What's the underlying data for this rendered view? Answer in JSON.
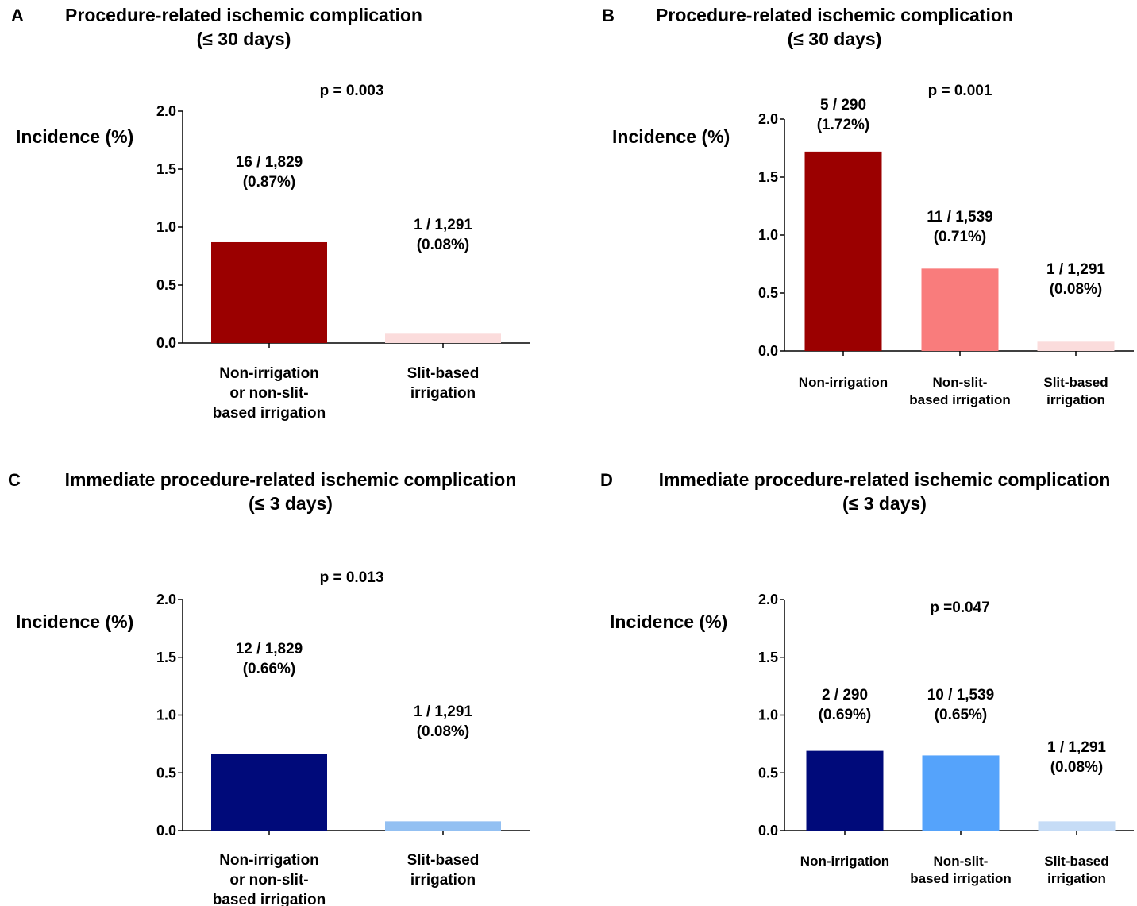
{
  "chart_data": [
    {
      "panel": "A",
      "type": "bar",
      "title_lines": [
        "Procedure-related ischemic complication",
        "(≤ 30 days)"
      ],
      "ylabel": "Incidence (%)",
      "p_value_label": "p = 0.003",
      "ylim": [
        0,
        2.0
      ],
      "yticks": [
        "0.0",
        "0.5",
        "1.0",
        "1.5",
        "2.0"
      ],
      "categories": [
        [
          "Non-irrigation",
          "or non-slit-",
          "based irrigation"
        ],
        [
          "Slit-based",
          "irrigation"
        ]
      ],
      "values": [
        0.87,
        0.08
      ],
      "data_labels": [
        [
          "16 / 1,829",
          "(0.87%)"
        ],
        [
          "1 / 1,291",
          "(0.08%)"
        ]
      ],
      "colors": [
        "#9b0000",
        "#fbdcdc"
      ]
    },
    {
      "panel": "B",
      "type": "bar",
      "title_lines": [
        "Procedure-related ischemic complication",
        "(≤ 30 days)"
      ],
      "ylabel": "Incidence (%)",
      "p_value_label": "p = 0.001",
      "ylim": [
        0,
        2.0
      ],
      "yticks": [
        "0.0",
        "0.5",
        "1.0",
        "1.5",
        "2.0"
      ],
      "categories": [
        [
          "Non-irrigation"
        ],
        [
          "Non-slit-",
          "based irrigation"
        ],
        [
          "Slit-based",
          "irrigation"
        ]
      ],
      "values": [
        1.72,
        0.71,
        0.08
      ],
      "data_labels": [
        [
          "5 / 290",
          "(1.72%)"
        ],
        [
          "11 / 1,539",
          "(0.71%)"
        ],
        [
          "1 / 1,291",
          "(0.08%)"
        ]
      ],
      "colors": [
        "#9b0000",
        "#f97c7c",
        "#fbdcdc"
      ]
    },
    {
      "panel": "C",
      "type": "bar",
      "title_lines": [
        "Immediate procedure-related ischemic complication",
        "(≤ 3 days)"
      ],
      "ylabel": "Incidence (%)",
      "p_value_label": "p = 0.013",
      "ylim": [
        0,
        2.0
      ],
      "yticks": [
        "0.0",
        "0.5",
        "1.0",
        "1.5",
        "2.0"
      ],
      "categories": [
        [
          "Non-irrigation",
          "or non-slit-",
          "based irrigation"
        ],
        [
          "Slit-based",
          "irrigation"
        ]
      ],
      "values": [
        0.66,
        0.08
      ],
      "data_labels": [
        [
          "12 / 1,829",
          "(0.66%)"
        ],
        [
          "1 / 1,291",
          "(0.08%)"
        ]
      ],
      "colors": [
        "#000a7a",
        "#93c0f2"
      ]
    },
    {
      "panel": "D",
      "type": "bar",
      "title_lines": [
        "Immediate procedure-related ischemic complication",
        "(≤ 3 days)"
      ],
      "ylabel": "Incidence (%)",
      "p_value_label": "p =0.047",
      "ylim": [
        0,
        2.0
      ],
      "yticks": [
        "0.0",
        "0.5",
        "1.0",
        "1.5",
        "2.0"
      ],
      "categories": [
        [
          "Non-irrigation"
        ],
        [
          "Non-slit-",
          "based irrigation"
        ],
        [
          "Slit-based",
          "irrigation"
        ]
      ],
      "values": [
        0.69,
        0.65,
        0.08
      ],
      "data_labels": [
        [
          "2 / 290",
          "(0.69%)"
        ],
        [
          "10 / 1,539",
          "(0.65%)"
        ],
        [
          "1 / 1,291",
          "(0.08%)"
        ]
      ],
      "colors": [
        "#000a7a",
        "#55a3fb",
        "#c6dcf6"
      ]
    }
  ]
}
